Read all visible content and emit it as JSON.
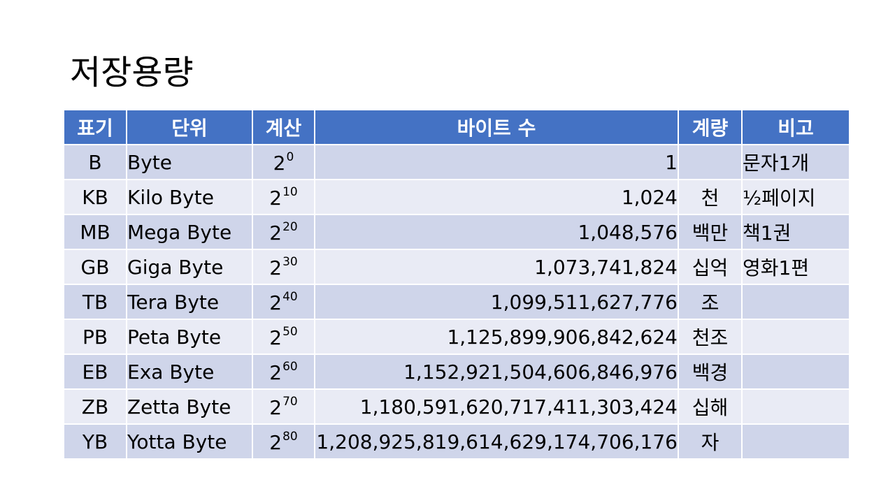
{
  "title": "저장용량",
  "table": {
    "headers": [
      "표기",
      "단위",
      "계산",
      "바이트 수",
      "계량",
      "비고"
    ],
    "rows": [
      {
        "symbol": "B",
        "unit": "Byte",
        "base": "2",
        "exp": "0",
        "bytes": "1",
        "amount": "",
        "note": "문자1개"
      },
      {
        "symbol": "KB",
        "unit": "Kilo Byte",
        "base": "2",
        "exp": "10",
        "bytes": "1,024",
        "amount": "천",
        "note": "½페이지"
      },
      {
        "symbol": "MB",
        "unit": "Mega Byte",
        "base": "2",
        "exp": "20",
        "bytes": "1,048,576",
        "amount": "백만",
        "note": "책1권"
      },
      {
        "symbol": "GB",
        "unit": "Giga Byte",
        "base": "2",
        "exp": "30",
        "bytes": "1,073,741,824",
        "amount": "십억",
        "note": "영화1편"
      },
      {
        "symbol": "TB",
        "unit": "Tera Byte",
        "base": "2",
        "exp": "40",
        "bytes": "1,099,511,627,776",
        "amount": "조",
        "note": ""
      },
      {
        "symbol": "PB",
        "unit": "Peta Byte",
        "base": "2",
        "exp": "50",
        "bytes": "1,125,899,906,842,624",
        "amount": "천조",
        "note": ""
      },
      {
        "symbol": "EB",
        "unit": "Exa Byte",
        "base": "2",
        "exp": "60",
        "bytes": "1,152,921,504,606,846,976",
        "amount": "백경",
        "note": ""
      },
      {
        "symbol": "ZB",
        "unit": "Zetta Byte",
        "base": "2",
        "exp": "70",
        "bytes": "1,180,591,620,717,411,303,424",
        "amount": "십해",
        "note": ""
      },
      {
        "symbol": "YB",
        "unit": "Yotta Byte",
        "base": "2",
        "exp": "80",
        "bytes": "1,208,925,819,614,629,174,706,176",
        "amount": "자",
        "note": ""
      }
    ]
  },
  "colors": {
    "header_bg": "#4472c4",
    "row_odd": "#cfd5ea",
    "row_even": "#e9ebf5"
  }
}
